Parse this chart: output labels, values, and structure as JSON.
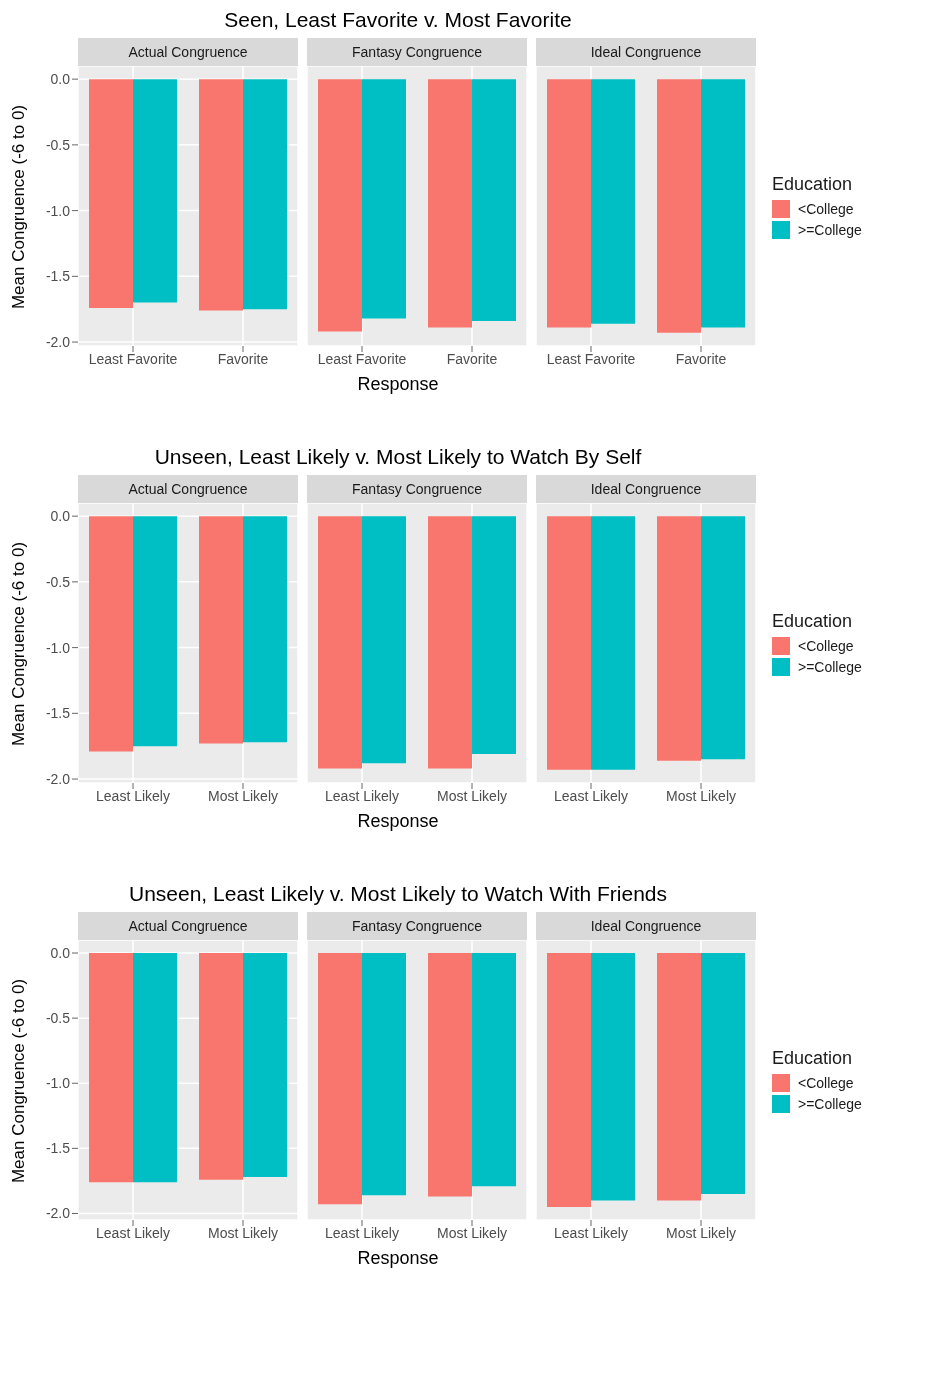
{
  "chart_data": [
    {
      "type": "bar",
      "title": "Seen, Least Favorite v. Most Favorite",
      "subtitle": "Actual Congruence",
      "ylabel": "Mean Congruence (-6 to 0)",
      "categories": [
        "Least Favorite",
        "Favorite"
      ],
      "series": [
        {
          "color": "#f8766d",
          "values": [
            -1.74,
            -1.76
          ]
        },
        {
          "color": "#00bfc4",
          "values": [
            -1.7,
            -1.75
          ]
        }
      ],
      "ylim": [
        -2.03,
        0.1
      ],
      "yticks": [
        {
          "value": -2,
          "label": "-2.0"
        },
        {
          "value": -1.5,
          "label": "-1.5"
        },
        {
          "value": -1,
          "label": "-1.0"
        },
        {
          "value": -0.5,
          "label": "-0.5"
        },
        {
          "value": 0,
          "label": "0.0"
        }
      ],
      "grid": true
    },
    {
      "type": "bar",
      "subtitle": "Fantasy Congruence",
      "xlabel": "Response",
      "categories": [
        "Least Favorite",
        "Favorite"
      ],
      "series": [
        {
          "color": "#f8766d",
          "values": [
            -1.92,
            -1.89
          ]
        },
        {
          "color": "#00bfc4",
          "values": [
            -1.82,
            -1.84
          ]
        }
      ],
      "ylim": [
        -2.03,
        0.1
      ],
      "yticks": [
        {
          "value": -2,
          "label": null
        },
        {
          "value": -1.5,
          "label": null
        },
        {
          "value": -1,
          "label": null
        },
        {
          "value": -0.5,
          "label": null
        },
        {
          "value": 0,
          "label": null
        }
      ],
      "grid": true,
      "tick_labels": "x"
    },
    {
      "type": "bar",
      "subtitle": "Ideal Congruence",
      "legend_title": "Education",
      "legend": "right",
      "categories": [
        "Least Favorite",
        "Favorite"
      ],
      "series": [
        {
          "name": "<College",
          "color": "#f8766d",
          "values": [
            -1.89,
            -1.93
          ]
        },
        {
          "name": ">=College",
          "color": "#00bfc4",
          "values": [
            -1.86,
            -1.89
          ]
        }
      ],
      "ylim": [
        -2.03,
        0.1
      ],
      "yticks": [
        {
          "value": -2,
          "label": null
        },
        {
          "value": -1.5,
          "label": null
        },
        {
          "value": -1,
          "label": null
        },
        {
          "value": -0.5,
          "label": null
        },
        {
          "value": 0,
          "label": null
        }
      ],
      "grid": true,
      "tick_labels": "x"
    },
    {
      "type": "bar",
      "title": "Unseen, Least Likely v. Most Likely to Watch By Self",
      "subtitle": "Actual Congruence",
      "ylabel": "Mean Congruence (-6 to 0)",
      "categories": [
        "Least Likely",
        "Most Likely"
      ],
      "series": [
        {
          "color": "#f8766d",
          "values": [
            -1.79,
            -1.73
          ]
        },
        {
          "color": "#00bfc4",
          "values": [
            -1.75,
            -1.72
          ]
        }
      ],
      "ylim": [
        -2.03,
        0.1
      ],
      "yticks": [
        {
          "value": -2,
          "label": "-2.0"
        },
        {
          "value": -1.5,
          "label": "-1.5"
        },
        {
          "value": -1,
          "label": "-1.0"
        },
        {
          "value": -0.5,
          "label": "-0.5"
        },
        {
          "value": 0,
          "label": "0.0"
        }
      ],
      "grid": true
    },
    {
      "type": "bar",
      "subtitle": "Fantasy Congruence",
      "xlabel": "Response",
      "categories": [
        "Least Likely",
        "Most Likely"
      ],
      "series": [
        {
          "color": "#f8766d",
          "values": [
            -1.92,
            -1.92
          ]
        },
        {
          "color": "#00bfc4",
          "values": [
            -1.88,
            -1.81
          ]
        }
      ],
      "ylim": [
        -2.03,
        0.1
      ],
      "yticks": [
        {
          "value": -2,
          "label": null
        },
        {
          "value": -1.5,
          "label": null
        },
        {
          "value": -1,
          "label": null
        },
        {
          "value": -0.5,
          "label": null
        },
        {
          "value": 0,
          "label": null
        }
      ],
      "grid": true,
      "tick_labels": "x"
    },
    {
      "type": "bar",
      "subtitle": "Ideal Congruence",
      "legend_title": "Education",
      "legend": "right",
      "categories": [
        "Least Likely",
        "Most Likely"
      ],
      "series": [
        {
          "name": "<College",
          "color": "#f8766d",
          "values": [
            -1.93,
            -1.86
          ]
        },
        {
          "name": ">=College",
          "color": "#00bfc4",
          "values": [
            -1.93,
            -1.85
          ]
        }
      ],
      "ylim": [
        -2.03,
        0.1
      ],
      "yticks": [
        {
          "value": -2,
          "label": null
        },
        {
          "value": -1.5,
          "label": null
        },
        {
          "value": -1,
          "label": null
        },
        {
          "value": -0.5,
          "label": null
        },
        {
          "value": 0,
          "label": null
        }
      ],
      "grid": true,
      "tick_labels": "x"
    },
    {
      "type": "bar",
      "title": "Unseen, Least Likely v. Most Likely to Watch With Friends",
      "subtitle": "Actual Congruence",
      "ylabel": "Mean Congruence (-6 to 0)",
      "categories": [
        "Least Likely",
        "Most Likely"
      ],
      "series": [
        {
          "color": "#f8766d",
          "values": [
            -1.76,
            -1.74
          ]
        },
        {
          "color": "#00bfc4",
          "values": [
            -1.76,
            -1.72
          ]
        }
      ],
      "ylim": [
        -2.05,
        0.1
      ],
      "yticks": [
        {
          "value": -2,
          "label": "-2.0"
        },
        {
          "value": -1.5,
          "label": "-1.5"
        },
        {
          "value": -1,
          "label": "-1.0"
        },
        {
          "value": -0.5,
          "label": "-0.5"
        },
        {
          "value": 0,
          "label": "0.0"
        }
      ],
      "grid": true
    },
    {
      "type": "bar",
      "subtitle": "Fantasy Congruence",
      "xlabel": "Response",
      "categories": [
        "Least Likely",
        "Most Likely"
      ],
      "series": [
        {
          "color": "#f8766d",
          "values": [
            -1.93,
            -1.87
          ]
        },
        {
          "color": "#00bfc4",
          "values": [
            -1.86,
            -1.79
          ]
        }
      ],
      "ylim": [
        -2.05,
        0.1
      ],
      "yticks": [
        {
          "value": -2,
          "label": null
        },
        {
          "value": -1.5,
          "label": null
        },
        {
          "value": -1,
          "label": null
        },
        {
          "value": -0.5,
          "label": null
        },
        {
          "value": 0,
          "label": null
        }
      ],
      "grid": true,
      "tick_labels": "x"
    },
    {
      "type": "bar",
      "subtitle": "Ideal Congruence",
      "legend_title": "Education",
      "legend": "right",
      "categories": [
        "Least Likely",
        "Most Likely"
      ],
      "series": [
        {
          "name": "<College",
          "color": "#f8766d",
          "values": [
            -1.95,
            -1.9
          ]
        },
        {
          "name": ">=College",
          "color": "#00bfc4",
          "values": [
            -1.9,
            -1.85
          ]
        }
      ],
      "ylim": [
        -2.05,
        0.1
      ],
      "yticks": [
        {
          "value": -2,
          "label": null
        },
        {
          "value": -1.5,
          "label": null
        },
        {
          "value": -1,
          "label": null
        },
        {
          "value": -0.5,
          "label": null
        },
        {
          "value": 0,
          "label": null
        }
      ],
      "grid": true,
      "tick_labels": "x"
    }
  ]
}
